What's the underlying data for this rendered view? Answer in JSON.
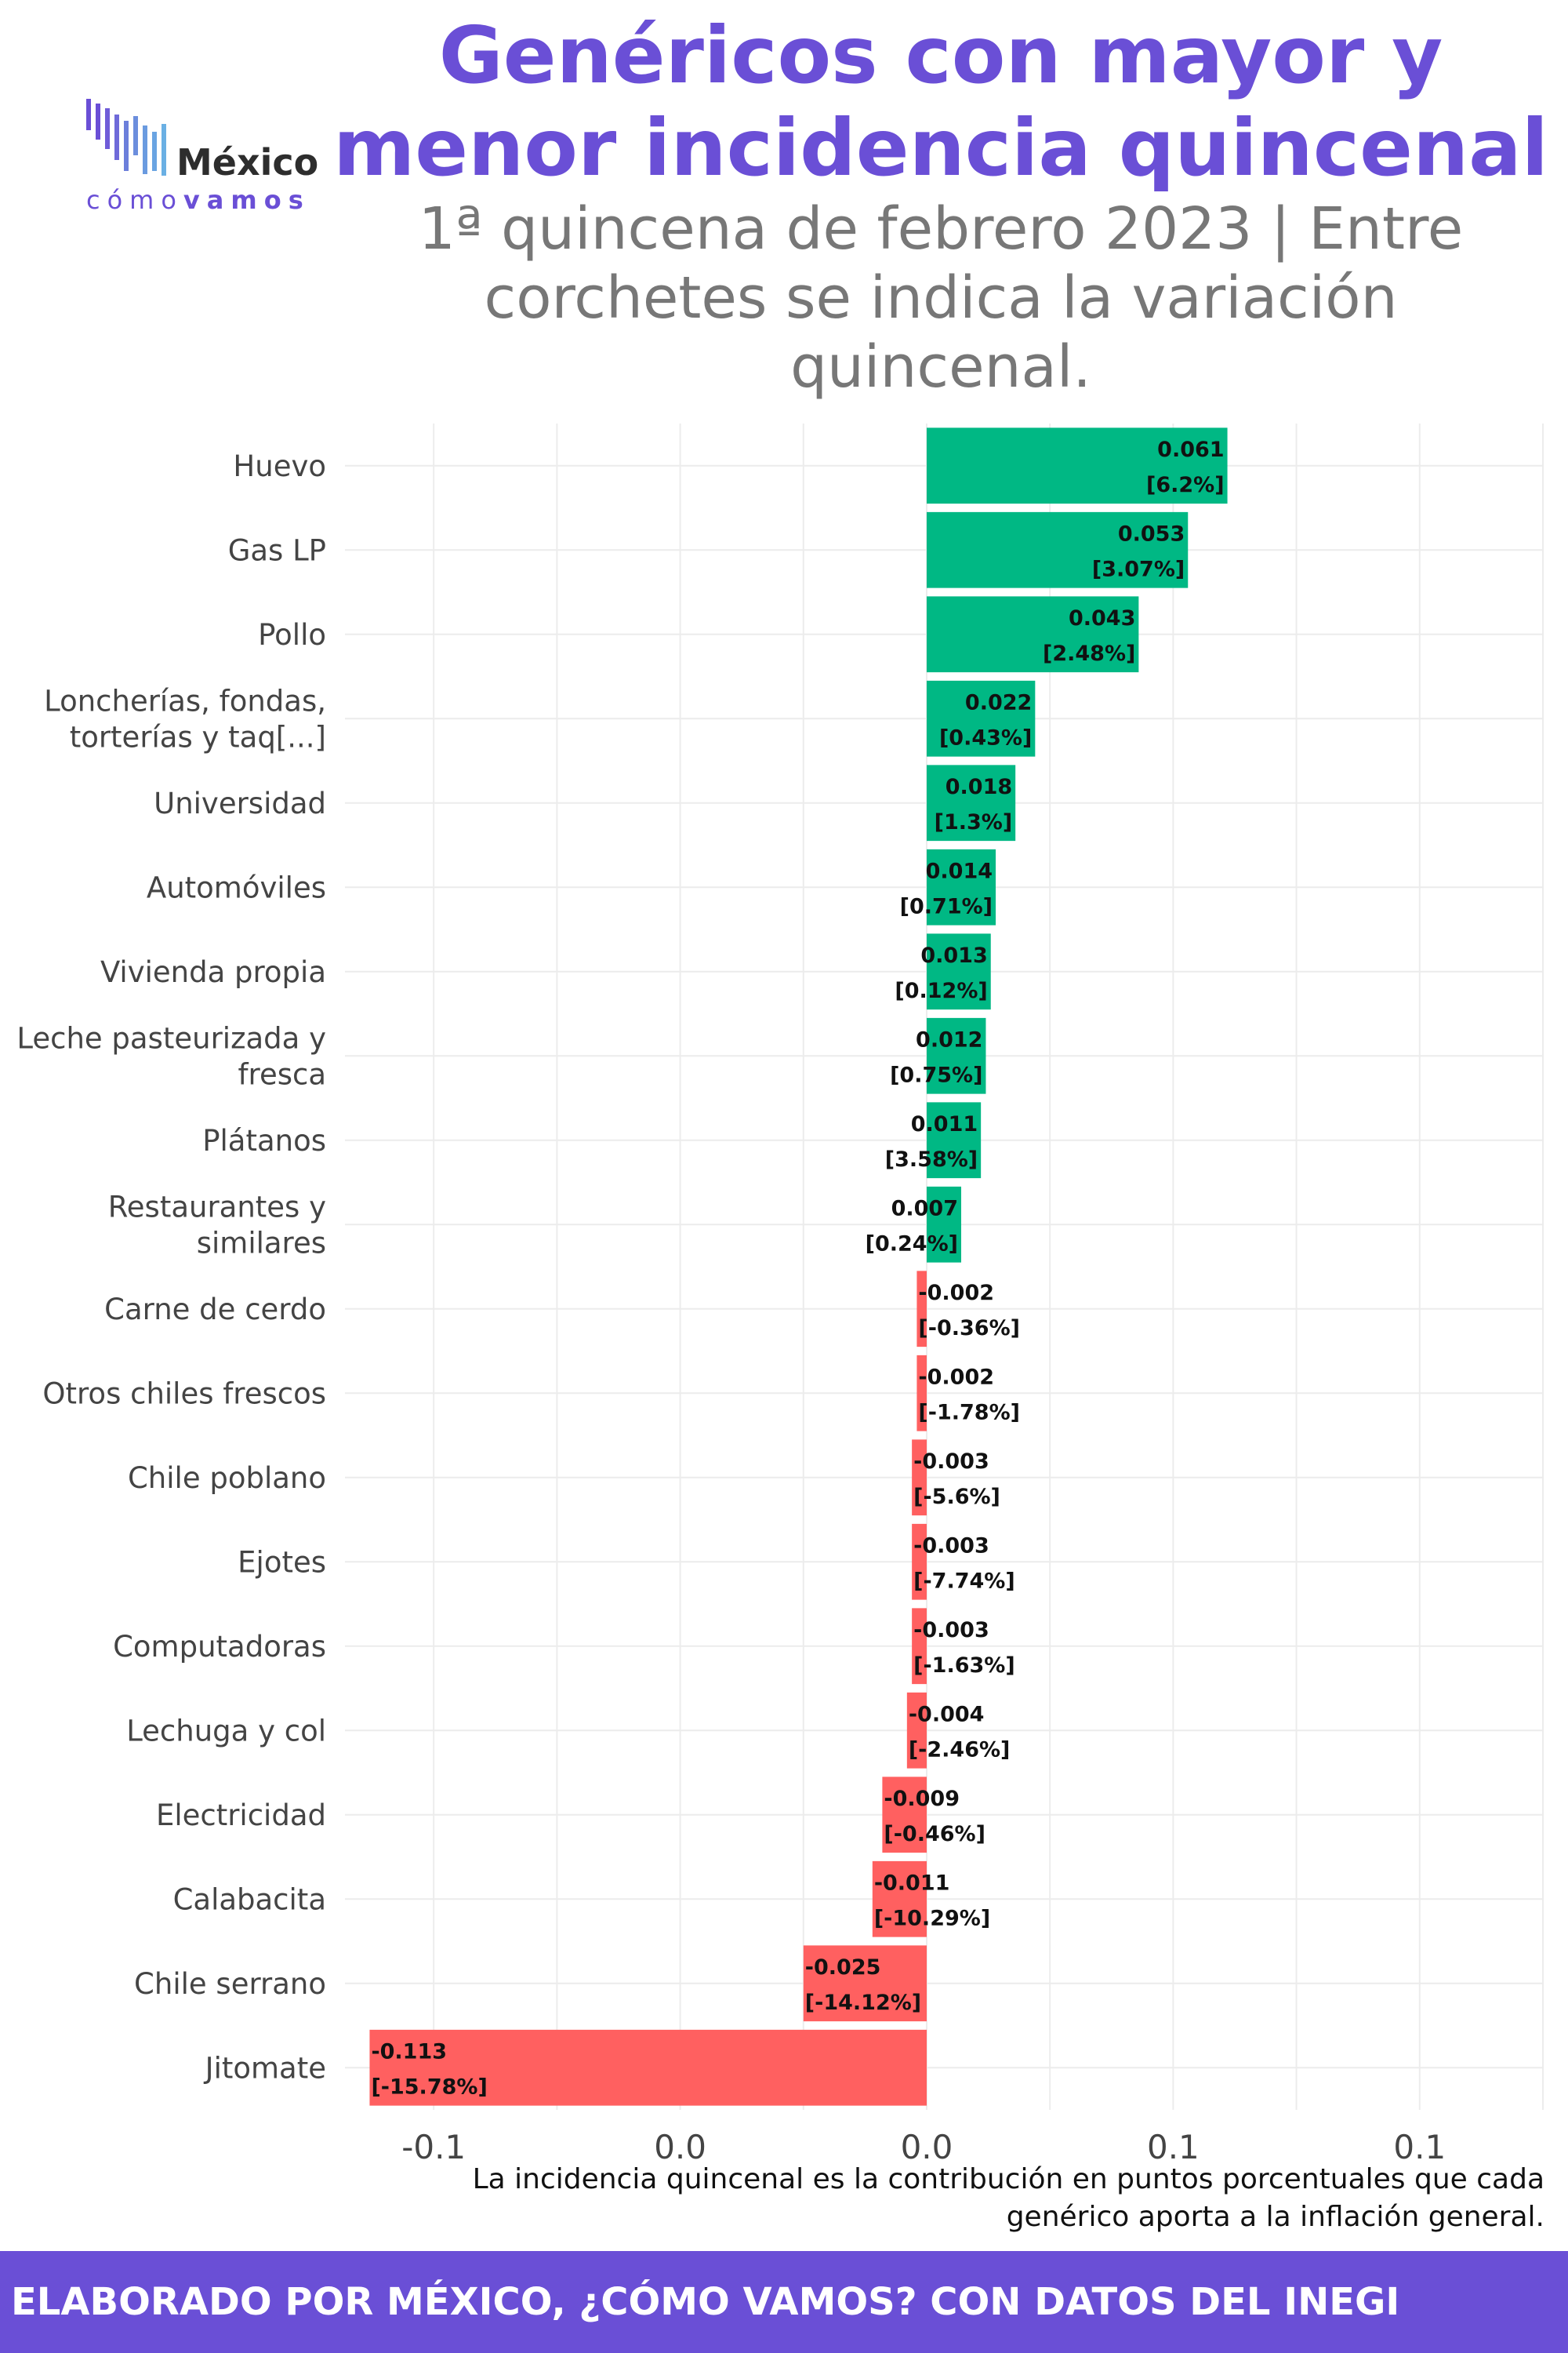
{
  "header": {
    "title": "Genéricos con mayor y menor incidencia quincenal",
    "subtitle": "1ª quincena de febrero 2023 | Entre corchetes se indica la variación quincenal."
  },
  "logo": {
    "word": "México",
    "sub_light": "cómo",
    "sub_bold": "vamos"
  },
  "note": "La incidencia quincenal es la contribución en puntos porcentuales que cada genérico aporta a la inflación general.",
  "footer": "ELABORADO POR MÉXICO, ¿CÓMO VAMOS? CON DATOS DEL INEGI",
  "colors": {
    "title": "#6a4fd6",
    "positive": "#00b884",
    "negative": "#ff6060",
    "footer": "#6a4fd6"
  },
  "chart_data": {
    "type": "bar",
    "orientation": "horizontal",
    "categories": [
      "Huevo",
      "Gas LP",
      "Pollo",
      "Loncherías, fondas, torterías y taq[...]",
      "Universidad",
      "Automóviles",
      "Vivienda propia",
      "Leche pasteurizada y fresca",
      "Plátanos",
      "Restaurantes y similares",
      "Carne de cerdo",
      "Otros chiles frescos",
      "Chile poblano",
      "Ejotes",
      "Computadoras",
      "Lechuga y col",
      "Electricidad",
      "Calabacita",
      "Chile serrano",
      "Jitomate"
    ],
    "values": [
      0.061,
      0.053,
      0.043,
      0.022,
      0.018,
      0.014,
      0.013,
      0.012,
      0.011,
      0.007,
      -0.002,
      -0.002,
      -0.003,
      -0.003,
      -0.003,
      -0.004,
      -0.009,
      -0.011,
      -0.025,
      -0.113
    ],
    "variation_labels": [
      "[6.2%]",
      "[3.07%]",
      "[2.48%]",
      "[0.43%]",
      "[1.3%]",
      "[0.71%]",
      "[0.12%]",
      "[0.75%]",
      "[3.58%]",
      "[0.24%]",
      "[-0.36%]",
      "[-1.78%]",
      "[-5.6%]",
      "[-7.74%]",
      "[-1.63%]",
      "[-2.46%]",
      "[-0.46%]",
      "[-10.29%]",
      "[-14.12%]",
      "[-15.78%]"
    ],
    "x_tick_labels": [
      "-0.1",
      "0.0",
      "0.0",
      "0.1",
      "0.1"
    ],
    "xlim": [
      -0.118,
      0.125
    ],
    "grid": true,
    "legend": "none"
  }
}
